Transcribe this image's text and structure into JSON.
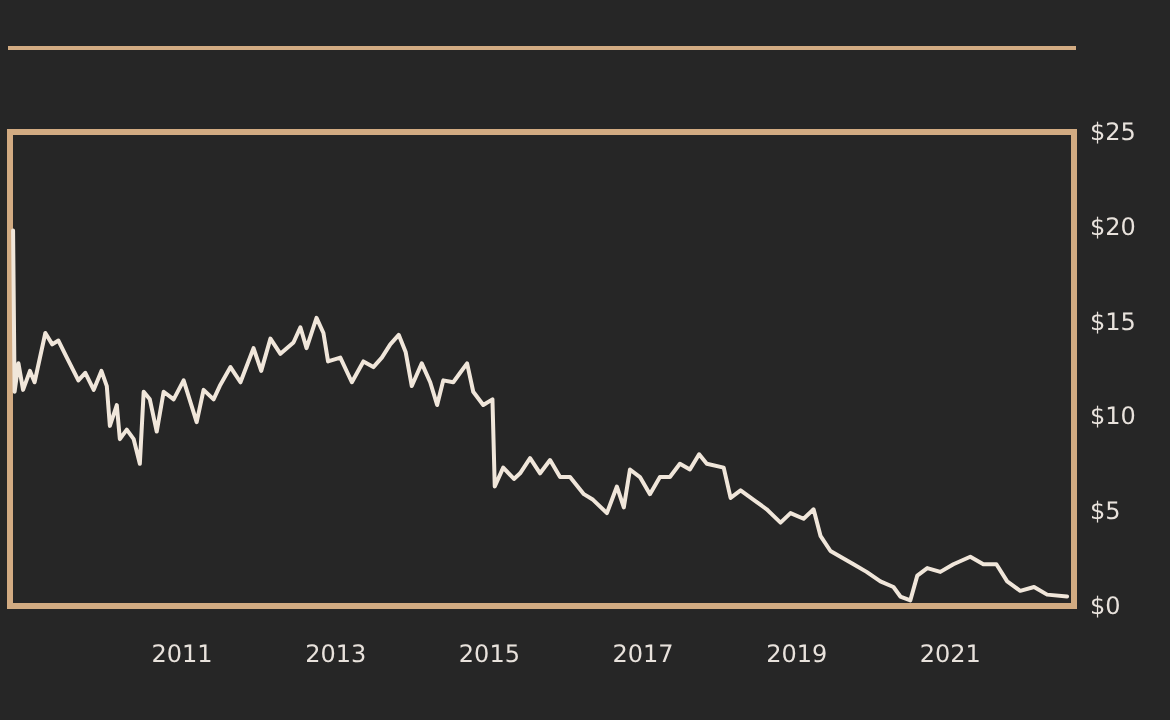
{
  "chart_data": {
    "type": "line",
    "xlim": [
      2008.76,
      2022.61
    ],
    "xticks": [
      2011,
      2013,
      2015,
      2017,
      2019,
      2021
    ],
    "ylim": [
      0,
      25
    ],
    "yticks": [
      {
        "value": 0,
        "label": "$0"
      },
      {
        "value": 5,
        "label": "$5"
      },
      {
        "value": 10,
        "label": "$10"
      },
      {
        "value": 15,
        "label": "$15"
      },
      {
        "value": 20,
        "label": "$20"
      },
      {
        "value": 25,
        "label": "$25"
      }
    ],
    "grid": false,
    "marker": "none",
    "line_style": "solid",
    "series": [
      {
        "color": "#f0e6da",
        "x": [
          2008.8,
          2008.82,
          2008.87,
          2008.93,
          2009.02,
          2009.08,
          2009.22,
          2009.31,
          2009.39,
          2009.5,
          2009.65,
          2009.74,
          2009.85,
          2009.95,
          2010.02,
          2010.06,
          2010.15,
          2010.19,
          2010.28,
          2010.37,
          2010.45,
          2010.5,
          2010.58,
          2010.67,
          2010.76,
          2010.89,
          2011.02,
          2011.19,
          2011.28,
          2011.41,
          2011.49,
          2011.63,
          2011.76,
          2011.93,
          2012.03,
          2012.15,
          2012.28,
          2012.45,
          2012.54,
          2012.62,
          2012.75,
          2012.84,
          2012.9,
          2013.06,
          2013.21,
          2013.36,
          2013.49,
          2013.6,
          2013.71,
          2013.82,
          2013.91,
          2013.99,
          2014.12,
          2014.23,
          2014.32,
          2014.4,
          2014.53,
          2014.62,
          2014.71,
          2014.79,
          2014.92,
          2015.04,
          2015.07,
          2015.18,
          2015.32,
          2015.4,
          2015.53,
          2015.66,
          2015.79,
          2015.92,
          2016.05,
          2016.23,
          2016.35,
          2016.53,
          2016.66,
          2016.75,
          2016.83,
          2016.96,
          2017.09,
          2017.22,
          2017.35,
          2017.48,
          2017.61,
          2017.73,
          2017.83,
          2018.05,
          2018.14,
          2018.27,
          2018.44,
          2018.61,
          2018.79,
          2018.92,
          2019.09,
          2019.22,
          2019.31,
          2019.44,
          2019.57,
          2019.74,
          2019.91,
          2020.09,
          2020.26,
          2020.35,
          2020.48,
          2020.57,
          2020.7,
          2020.87,
          2021.04,
          2021.26,
          2021.43,
          2021.6,
          2021.74,
          2021.91,
          2022.09,
          2022.26,
          2022.52
        ],
        "values": [
          19.8,
          11.3,
          12.8,
          11.4,
          12.4,
          11.8,
          14.4,
          13.8,
          14.0,
          13.1,
          11.9,
          12.3,
          11.4,
          12.4,
          11.6,
          9.5,
          10.6,
          8.8,
          9.3,
          8.8,
          7.5,
          11.3,
          10.9,
          9.2,
          11.3,
          10.9,
          11.9,
          9.7,
          11.4,
          10.9,
          11.6,
          12.6,
          11.8,
          13.6,
          12.4,
          14.1,
          13.3,
          13.9,
          14.7,
          13.6,
          15.2,
          14.4,
          12.9,
          13.1,
          11.8,
          12.9,
          12.6,
          13.1,
          13.8,
          14.3,
          13.4,
          11.6,
          12.8,
          11.8,
          10.6,
          11.9,
          11.8,
          12.3,
          12.8,
          11.3,
          10.6,
          10.9,
          6.3,
          7.3,
          6.7,
          7.0,
          7.8,
          7.0,
          7.7,
          6.8,
          6.8,
          5.9,
          5.6,
          4.9,
          6.3,
          5.2,
          7.2,
          6.8,
          5.9,
          6.8,
          6.8,
          7.5,
          7.2,
          8.0,
          7.5,
          7.3,
          5.7,
          6.1,
          5.6,
          5.1,
          4.4,
          4.9,
          4.6,
          5.1,
          3.7,
          2.9,
          2.6,
          2.2,
          1.8,
          1.3,
          1.0,
          0.5,
          0.3,
          1.6,
          2.0,
          1.8,
          2.2,
          2.6,
          2.2,
          2.2,
          1.3,
          0.8,
          1.0,
          0.6,
          0.5
        ]
      }
    ]
  }
}
